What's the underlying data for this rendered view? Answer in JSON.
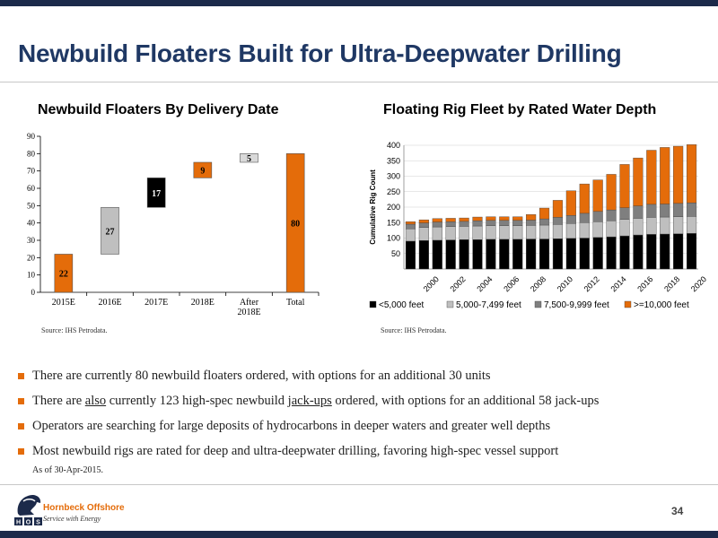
{
  "slide": {
    "title": "Newbuild Floaters Built for Ultra-Deepwater Drilling",
    "page_number": "34",
    "as_of": "As of 30-Apr-2015.",
    "colors": {
      "navy": "#1c2a4a",
      "title_blue": "#1f3864",
      "orange": "#e46c0a"
    }
  },
  "bullets": [
    {
      "parts": [
        {
          "text": "There are currently 80 newbuild floaters ordered, with options for an additional 30 units",
          "u": false
        }
      ]
    },
    {
      "parts": [
        {
          "text": "There are ",
          "u": false
        },
        {
          "text": "also",
          "u": true
        },
        {
          "text": " currently 123 high-spec newbuild ",
          "u": false
        },
        {
          "text": "jack-ups",
          "u": true
        },
        {
          "text": " ordered, with options for an additional 58 jack-ups",
          "u": false
        }
      ]
    },
    {
      "parts": [
        {
          "text": "Operators are searching for large deposits of hydrocarbons in deeper waters and greater well depths",
          "u": false
        }
      ]
    },
    {
      "parts": [
        {
          "text": "Most newbuild rigs are rated for deep and ultra-deepwater drilling, favoring high-spec vessel support",
          "u": false
        }
      ]
    }
  ],
  "logo": {
    "name": "Hornbeck Offshore",
    "tagline": "Service with Energy",
    "letters": [
      "H",
      "O",
      "S"
    ]
  },
  "chart_data": [
    {
      "type": "bar",
      "subtype": "waterfall",
      "title": "Newbuild Floaters By Delivery Date",
      "source": "Source: IHS Petrodata.",
      "categories": [
        "2015E",
        "2016E",
        "2017E",
        "2018E",
        "After\n2018E",
        "Total"
      ],
      "values": [
        22,
        27,
        17,
        9,
        5,
        80
      ],
      "bar_colors": [
        "#e46c0a",
        "#bfbfbf",
        "#000000",
        "#e46c0a",
        "#d9d9d9",
        "#e46c0a"
      ],
      "label_colors": [
        "#000000",
        "#000000",
        "#ffffff",
        "#000000",
        "#000000",
        "#000000"
      ],
      "ylim": [
        0,
        90
      ],
      "yticks": [
        0,
        10,
        20,
        30,
        40,
        50,
        60,
        70,
        80,
        90
      ],
      "grid": false
    },
    {
      "type": "bar",
      "subtype": "stacked",
      "title": "Floating Rig Fleet by Rated Water Depth",
      "ylabel": "Cumulative Rig Count",
      "source": "Source: IHS Petrodata.",
      "categories": [
        "1999",
        "2000",
        "2001",
        "2002",
        "2003",
        "2004",
        "2005",
        "2006",
        "2007",
        "2008",
        "2009",
        "2010",
        "2011",
        "2012",
        "2013",
        "2014",
        "2015",
        "2016",
        "2017",
        "2018",
        "2019",
        "2020"
      ],
      "tick_labels": [
        "2000",
        "2002",
        "2004",
        "2006",
        "2008",
        "2010",
        "2012",
        "2014",
        "2016",
        "2018",
        "2020"
      ],
      "ylim": [
        0,
        400
      ],
      "yticks": [
        50,
        100,
        150,
        200,
        250,
        300,
        350,
        400
      ],
      "grid": true,
      "legend_position": "bottom",
      "series": [
        {
          "name": "<5,000 feet",
          "color": "#000000",
          "values": [
            90,
            92,
            93,
            94,
            95,
            95,
            96,
            96,
            96,
            97,
            97,
            98,
            99,
            100,
            102,
            104,
            107,
            110,
            112,
            113,
            114,
            115
          ]
        },
        {
          "name": "5,000-7,499 feet",
          "color": "#bfbfbf",
          "values": [
            40,
            42,
            43,
            43,
            43,
            44,
            44,
            44,
            44,
            44,
            45,
            46,
            48,
            50,
            51,
            52,
            53,
            54,
            55,
            55,
            55,
            55
          ]
        },
        {
          "name": "7,500-9,999 feet",
          "color": "#7f7f7f",
          "values": [
            15,
            15,
            16,
            16,
            16,
            17,
            17,
            17,
            17,
            17,
            20,
            23,
            26,
            30,
            33,
            35,
            38,
            40,
            42,
            42,
            43,
            44
          ]
        },
        {
          "name": ">=10,000 feet",
          "color": "#e46c0a",
          "values": [
            8,
            10,
            11,
            11,
            11,
            12,
            12,
            12,
            12,
            18,
            35,
            55,
            80,
            95,
            102,
            115,
            140,
            155,
            175,
            183,
            185,
            188
          ]
        }
      ]
    }
  ]
}
